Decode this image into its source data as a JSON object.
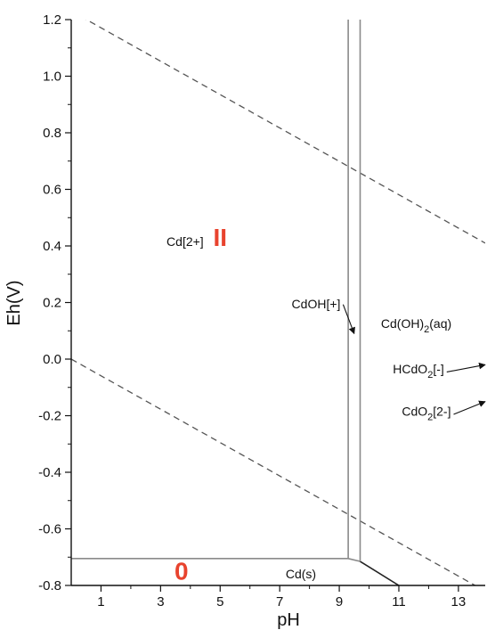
{
  "chart_data": {
    "type": "line",
    "title": "",
    "xlabel": "pH",
    "ylabel": "Eh(V)",
    "xlim": [
      0,
      13.9
    ],
    "ylim": [
      -0.8,
      1.2
    ],
    "x_ticks": [
      1,
      3,
      5,
      7,
      9,
      11,
      13
    ],
    "x_tick_labels": [
      "1",
      "3",
      "5",
      "7",
      "9",
      "11",
      "13"
    ],
    "x_minor_ticks": [
      2,
      4,
      6,
      8,
      10,
      12
    ],
    "y_ticks": [
      -0.8,
      -0.6,
      -0.4,
      -0.2,
      0.0,
      0.2,
      0.4,
      0.6,
      0.8,
      1.0,
      1.2
    ],
    "y_tick_labels": [
      "-0.8",
      "-0.6",
      "-0.4",
      "-0.2",
      "0.0",
      "0.2",
      "0.4",
      "0.6",
      "0.8",
      "1.0",
      "1.2"
    ],
    "y_minor_ticks": [
      -0.7,
      -0.5,
      -0.3,
      -0.1,
      0.1,
      0.3,
      0.5,
      0.7,
      0.9,
      1.1
    ],
    "grid": false,
    "water_stability_lines": [
      {
        "style": "dashed",
        "x": [
          0,
          13.9
        ],
        "y": [
          1.23,
          0.41
        ]
      },
      {
        "style": "dashed",
        "x": [
          0,
          13.9
        ],
        "y": [
          0.0,
          -0.82
        ]
      }
    ],
    "boundaries": [
      {
        "style": "solid",
        "x": [
          0,
          9.3
        ],
        "y": [
          -0.705,
          -0.705
        ]
      },
      {
        "style": "solid",
        "x": [
          9.3,
          9.7
        ],
        "y": [
          -0.705,
          -0.715
        ]
      },
      {
        "style": "solid",
        "x": [
          9.7,
          11.0
        ],
        "y": [
          -0.715,
          -0.8
        ]
      },
      {
        "style": "solid",
        "x": [
          9.3,
          9.3
        ],
        "y": [
          -0.705,
          1.2
        ]
      },
      {
        "style": "solid",
        "x": [
          9.7,
          9.7
        ],
        "y": [
          -0.715,
          1.2
        ]
      }
    ],
    "region_labels": [
      {
        "text": "Cd[2+]",
        "x": 3.2,
        "y": 0.4
      },
      {
        "text": "Cd(s)",
        "x": 7.2,
        "y": -0.775
      }
    ],
    "annotations": [
      {
        "text": "CdOH[+]",
        "x": 7.4,
        "y": 0.18,
        "arrow_to": [
          9.5,
          0.09
        ]
      },
      {
        "text": "Cd(OH)",
        "sub": "2",
        "after": "(aq)",
        "x": 10.4,
        "y": 0.11
      },
      {
        "text": "HCdO",
        "sub": "2",
        "after": "[-]",
        "x": 10.8,
        "y": -0.05,
        "arrow_to": [
          13.9,
          -0.02
        ]
      },
      {
        "text": "CdO",
        "sub": "2",
        "after": "[2-]",
        "x": 11.1,
        "y": -0.2,
        "arrow_to": [
          13.9,
          -0.15
        ]
      }
    ],
    "oxidation_state_labels": [
      {
        "text": "II",
        "x": 5.0,
        "y": 0.4
      },
      {
        "text": "0",
        "x": 3.7,
        "y": -0.78
      }
    ]
  },
  "colors": {
    "boundary": "#8a8a8a",
    "axis": "#111111",
    "dashed": "#555555",
    "oxidation_label": "#e8432e"
  }
}
